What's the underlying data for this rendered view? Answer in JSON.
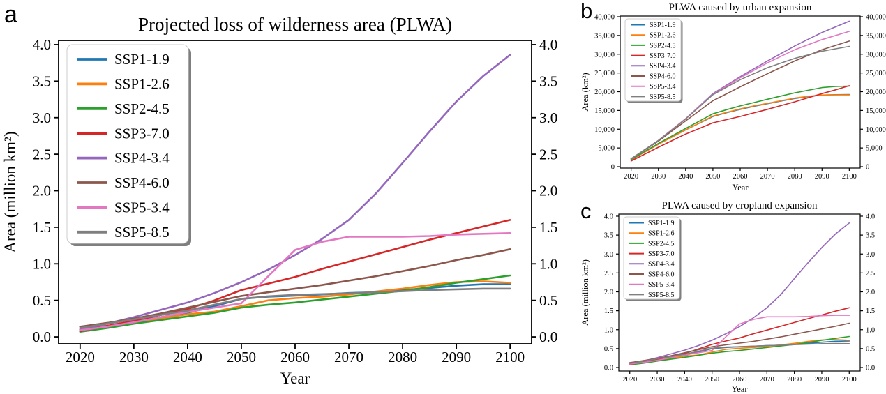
{
  "figure": {
    "background": "#ffffff"
  },
  "chart_data": [
    {
      "panel_label": "a",
      "type": "line",
      "title": "Projected loss of wilderness area (PLWA)",
      "xlabel": "Year",
      "ylabel": "Area (million km²)",
      "legend_position": "upper left",
      "grid": false,
      "dual_y_labels": true,
      "xlim": [
        2016,
        2104
      ],
      "ylim": [
        -0.095,
        4.057
      ],
      "xticks": [
        2020,
        2030,
        2040,
        2050,
        2060,
        2070,
        2080,
        2090,
        2100
      ],
      "yticks": [
        0.0,
        0.5,
        1.0,
        1.5,
        2.0,
        2.5,
        3.0,
        3.5,
        4.0
      ],
      "ytick_format": "fixed1",
      "x": [
        2020,
        2025,
        2030,
        2035,
        2040,
        2045,
        2050,
        2055,
        2060,
        2065,
        2070,
        2075,
        2080,
        2085,
        2090,
        2095,
        2100
      ],
      "series": [
        {
          "name": "SSP1-1.9",
          "color": "#1f77b4",
          "values": [
            0.1,
            0.15,
            0.21,
            0.27,
            0.33,
            0.42,
            0.52,
            0.55,
            0.565,
            0.58,
            0.6,
            0.61,
            0.64,
            0.67,
            0.7,
            0.72,
            0.72
          ]
        },
        {
          "name": "SSP1-2.6",
          "color": "#ff7f0e",
          "values": [
            0.08,
            0.14,
            0.19,
            0.25,
            0.31,
            0.345,
            0.42,
            0.5,
            0.53,
            0.55,
            0.58,
            0.62,
            0.66,
            0.71,
            0.75,
            0.76,
            0.74
          ]
        },
        {
          "name": "SSP2-4.5",
          "color": "#2ca02c",
          "values": [
            0.07,
            0.12,
            0.18,
            0.23,
            0.28,
            0.33,
            0.4,
            0.44,
            0.47,
            0.51,
            0.55,
            0.59,
            0.63,
            0.68,
            0.74,
            0.79,
            0.84
          ]
        },
        {
          "name": "SSP3-7.0",
          "color": "#d62728",
          "values": [
            0.08,
            0.15,
            0.22,
            0.3,
            0.38,
            0.5,
            0.64,
            0.73,
            0.82,
            0.93,
            1.03,
            1.13,
            1.23,
            1.33,
            1.42,
            1.51,
            1.6
          ]
        },
        {
          "name": "SSP4-3.4",
          "color": "#9467bd",
          "values": [
            0.1,
            0.18,
            0.27,
            0.37,
            0.47,
            0.6,
            0.75,
            0.92,
            1.12,
            1.34,
            1.6,
            1.96,
            2.38,
            2.81,
            3.22,
            3.57,
            3.86
          ]
        },
        {
          "name": "SSP4-6.0",
          "color": "#8c564b",
          "values": [
            0.14,
            0.19,
            0.25,
            0.32,
            0.4,
            0.48,
            0.56,
            0.61,
            0.66,
            0.71,
            0.77,
            0.83,
            0.9,
            0.97,
            1.05,
            1.12,
            1.2
          ]
        },
        {
          "name": "SSP5-3.4",
          "color": "#e377c2",
          "values": [
            0.09,
            0.14,
            0.2,
            0.27,
            0.34,
            0.4,
            0.46,
            0.83,
            1.19,
            1.3,
            1.37,
            1.37,
            1.37,
            1.38,
            1.4,
            1.41,
            1.42
          ]
        },
        {
          "name": "SSP5-8.5",
          "color": "#7f7f7f",
          "values": [
            0.12,
            0.18,
            0.24,
            0.3,
            0.36,
            0.44,
            0.52,
            0.555,
            0.575,
            0.585,
            0.595,
            0.61,
            0.625,
            0.64,
            0.65,
            0.66,
            0.66
          ]
        }
      ]
    },
    {
      "panel_label": "b",
      "type": "line",
      "title": "PLWA caused by urban expansion",
      "xlabel": "Year",
      "ylabel": "Area (km²)",
      "legend_position": "upper left",
      "grid": false,
      "dual_y_labels": true,
      "xlim": [
        2016,
        2104
      ],
      "ylim": [
        -372,
        40186
      ],
      "xticks": [
        2020,
        2030,
        2040,
        2050,
        2060,
        2070,
        2080,
        2090,
        2100
      ],
      "yticks": [
        0,
        5000,
        10000,
        15000,
        20000,
        25000,
        30000,
        35000,
        40000
      ],
      "ytick_format": "comma",
      "x": [
        2020,
        2025,
        2030,
        2035,
        2040,
        2045,
        2050,
        2055,
        2060,
        2065,
        2070,
        2075,
        2080,
        2085,
        2090,
        2095,
        2100
      ],
      "series": [
        {
          "name": "SSP1-1.9",
          "color": "#1f77b4",
          "values": [
            1800,
            3900,
            6000,
            7900,
            9800,
            11600,
            13400,
            14400,
            15300,
            16100,
            16800,
            17500,
            18200,
            18700,
            19100,
            19200,
            19250
          ]
        },
        {
          "name": "SSP1-2.6",
          "color": "#ff7f0e",
          "values": [
            1800,
            3900,
            6000,
            7900,
            9800,
            11650,
            13500,
            14500,
            15400,
            16200,
            16900,
            17600,
            18300,
            18800,
            19100,
            19150,
            19150
          ]
        },
        {
          "name": "SSP2-4.5",
          "color": "#2ca02c",
          "values": [
            1900,
            4050,
            6200,
            8200,
            10200,
            12150,
            14100,
            15200,
            16200,
            17100,
            18000,
            18850,
            19700,
            20400,
            21100,
            21400,
            21500
          ]
        },
        {
          "name": "SSP3-7.0",
          "color": "#d62728",
          "values": [
            1500,
            3350,
            5200,
            6950,
            8700,
            10200,
            11700,
            12550,
            13400,
            14350,
            15300,
            16300,
            17300,
            18400,
            19500,
            20500,
            21600
          ]
        },
        {
          "name": "SSP4-3.4",
          "color": "#9467bd",
          "values": [
            2100,
            4550,
            7000,
            9900,
            12800,
            16150,
            19500,
            21750,
            24000,
            26100,
            28200,
            30200,
            32200,
            34000,
            35800,
            37300,
            38800
          ]
        },
        {
          "name": "SSP4-6.0",
          "color": "#8c564b",
          "values": [
            2100,
            4450,
            6800,
            9500,
            12200,
            14900,
            17600,
            19450,
            21300,
            23050,
            24800,
            26500,
            28200,
            29700,
            31200,
            32350,
            33500
          ]
        },
        {
          "name": "SSP5-3.4",
          "color": "#e377c2",
          "values": [
            2100,
            4550,
            7000,
            9900,
            12800,
            16050,
            19300,
            21500,
            23700,
            25700,
            27700,
            29450,
            31200,
            32550,
            33900,
            35000,
            36100
          ]
        },
        {
          "name": "SSP5-8.5",
          "color": "#7f7f7f",
          "values": [
            2100,
            4550,
            7000,
            9850,
            12700,
            15950,
            19200,
            21200,
            23200,
            24800,
            26400,
            27650,
            28900,
            29850,
            30800,
            31450,
            32100
          ]
        }
      ]
    },
    {
      "panel_label": "c",
      "type": "line",
      "title": "PLWA caused by cropland expansion",
      "xlabel": "Year",
      "ylabel": "Area (million km²)",
      "legend_position": "upper left",
      "grid": false,
      "dual_y_labels": true,
      "xlim": [
        2016,
        2104
      ],
      "ylim": [
        -0.092,
        4.055
      ],
      "xticks": [
        2020,
        2030,
        2040,
        2050,
        2060,
        2070,
        2080,
        2090,
        2100
      ],
      "yticks": [
        0.0,
        0.5,
        1.0,
        1.5,
        2.0,
        2.5,
        3.0,
        3.5,
        4.0
      ],
      "ytick_format": "fixed1",
      "x": [
        2020,
        2025,
        2030,
        2035,
        2040,
        2045,
        2050,
        2055,
        2060,
        2065,
        2070,
        2075,
        2080,
        2085,
        2090,
        2095,
        2100
      ],
      "series": [
        {
          "name": "SSP1-1.9",
          "color": "#1f77b4",
          "values": [
            0.09,
            0.14,
            0.2,
            0.26,
            0.32,
            0.41,
            0.5,
            0.53,
            0.55,
            0.565,
            0.58,
            0.59,
            0.61,
            0.64,
            0.67,
            0.695,
            0.7
          ]
        },
        {
          "name": "SSP1-2.6",
          "color": "#ff7f0e",
          "values": [
            0.08,
            0.13,
            0.18,
            0.24,
            0.3,
            0.33,
            0.41,
            0.48,
            0.51,
            0.53,
            0.56,
            0.6,
            0.64,
            0.69,
            0.73,
            0.74,
            0.72
          ]
        },
        {
          "name": "SSP2-4.5",
          "color": "#2ca02c",
          "values": [
            0.07,
            0.115,
            0.17,
            0.22,
            0.27,
            0.32,
            0.38,
            0.42,
            0.45,
            0.49,
            0.53,
            0.57,
            0.61,
            0.66,
            0.72,
            0.77,
            0.82
          ]
        },
        {
          "name": "SSP3-7.0",
          "color": "#d62728",
          "values": [
            0.08,
            0.145,
            0.21,
            0.29,
            0.37,
            0.49,
            0.61,
            0.7,
            0.78,
            0.89,
            0.99,
            1.09,
            1.19,
            1.29,
            1.39,
            1.49,
            1.58
          ]
        },
        {
          "name": "SSP4-3.4",
          "color": "#9467bd",
          "values": [
            0.1,
            0.175,
            0.26,
            0.36,
            0.46,
            0.58,
            0.72,
            0.89,
            1.08,
            1.31,
            1.58,
            1.92,
            2.35,
            2.77,
            3.17,
            3.53,
            3.82
          ]
        },
        {
          "name": "SSP4-6.0",
          "color": "#8c564b",
          "values": [
            0.13,
            0.185,
            0.24,
            0.31,
            0.39,
            0.47,
            0.55,
            0.6,
            0.645,
            0.69,
            0.75,
            0.81,
            0.88,
            0.95,
            1.02,
            1.09,
            1.17
          ]
        },
        {
          "name": "SSP5-3.4",
          "color": "#e377c2",
          "values": [
            0.09,
            0.135,
            0.19,
            0.26,
            0.33,
            0.39,
            0.45,
            0.81,
            1.15,
            1.27,
            1.34,
            1.34,
            1.34,
            1.35,
            1.37,
            1.38,
            1.38
          ]
        },
        {
          "name": "SSP5-8.5",
          "color": "#7f7f7f",
          "values": [
            0.11,
            0.17,
            0.23,
            0.29,
            0.35,
            0.43,
            0.51,
            0.54,
            0.55,
            0.565,
            0.58,
            0.59,
            0.605,
            0.62,
            0.63,
            0.635,
            0.63
          ]
        }
      ]
    }
  ]
}
